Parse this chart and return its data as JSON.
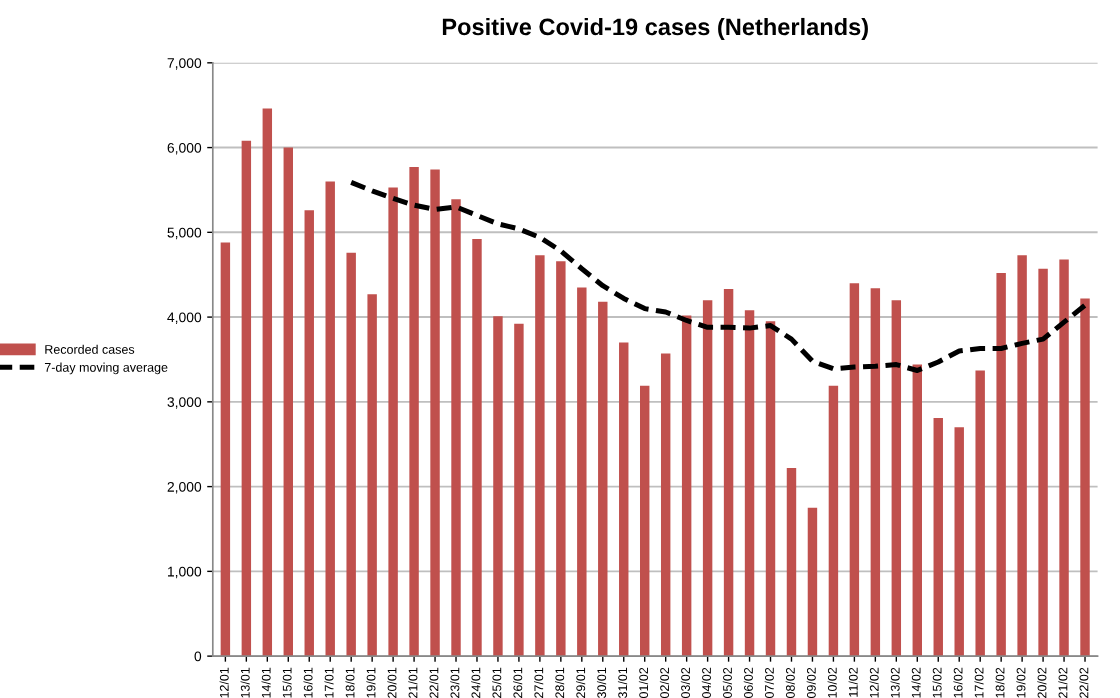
{
  "chart_data": {
    "type": "bar",
    "title": "Positive Covid-19 cases (Netherlands)",
    "categories": [
      "12/01",
      "13/01",
      "14/01",
      "15/01",
      "16/01",
      "17/01",
      "18/01",
      "19/01",
      "20/01",
      "21/01",
      "22/01",
      "23/01",
      "24/01",
      "25/01",
      "26/01",
      "27/01",
      "28/01",
      "29/01",
      "30/01",
      "31/01",
      "01/02",
      "02/02",
      "03/02",
      "04/02",
      "05/02",
      "06/02",
      "07/02",
      "08/02",
      "09/02",
      "10/02",
      "11/02",
      "12/02",
      "13/02",
      "14/02",
      "15/02",
      "16/02",
      "17/02",
      "18/02",
      "19/02",
      "20/02",
      "21/02",
      "22/02"
    ],
    "series": [
      {
        "name": "Recorded cases",
        "color": "#c0504d",
        "values": [
          4880,
          6080,
          6460,
          6000,
          5260,
          5600,
          4760,
          4270,
          5530,
          5770,
          5740,
          5390,
          4920,
          4010,
          3920,
          4730,
          4660,
          4350,
          4180,
          3700,
          3190,
          3570,
          4020,
          4200,
          4330,
          4080,
          3950,
          2220,
          1750,
          3190,
          4400,
          4340,
          4200,
          3440,
          2810,
          2700,
          3370,
          4520,
          4730,
          4570,
          4680,
          4220
        ]
      },
      {
        "name": "7-day moving average",
        "type": "line",
        "color": "#000000",
        "line_style": "dashed",
        "values": [
          null,
          null,
          null,
          null,
          null,
          null,
          5590,
          5490,
          5400,
          5320,
          5270,
          5300,
          5200,
          5100,
          5040,
          4940,
          4780,
          4570,
          4370,
          4220,
          4100,
          4060,
          3960,
          3880,
          3880,
          3870,
          3900,
          3740,
          3480,
          3390,
          3410,
          3420,
          3440,
          3370,
          3470,
          3600,
          3630,
          3630,
          3690,
          3740,
          3940,
          4140
        ]
      }
    ],
    "ylim": [
      0,
      7000
    ],
    "yticks": [
      0,
      {
        "value": 1000,
        "label": "1,000"
      },
      {
        "value": 2000,
        "label": "2,000"
      },
      {
        "value": 3000,
        "label": "3,000"
      },
      {
        "value": 4000,
        "label": "4,000"
      },
      {
        "value": 5000,
        "label": "5,000"
      },
      {
        "value": 6000,
        "label": "6,000"
      },
      {
        "value": 7000,
        "label": "7,000"
      }
    ],
    "grid": "y",
    "legend": "left"
  }
}
